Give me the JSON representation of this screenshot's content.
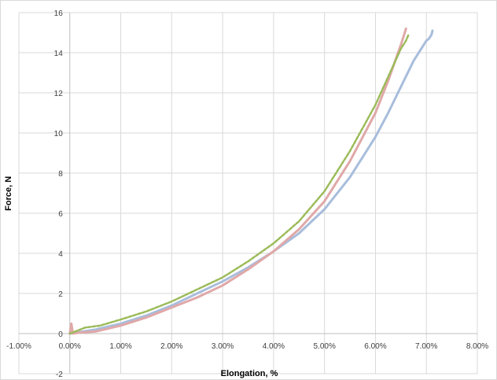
{
  "chart_data": {
    "type": "line",
    "title": "",
    "xlabel": "Elongation, %",
    "ylabel": "Force, N",
    "xlim": [
      -0.01,
      0.08
    ],
    "ylim": [
      -2,
      16
    ],
    "x_ticks": [
      -0.01,
      0.0,
      0.01,
      0.02,
      0.03,
      0.04,
      0.05,
      0.06,
      0.07,
      0.08
    ],
    "x_tick_labels": [
      "-1.00%",
      "0.00%",
      "1.00%",
      "2.00%",
      "3.00%",
      "4.00%",
      "5.00%",
      "6.00%",
      "7.00%",
      "8.00%"
    ],
    "y_ticks": [
      -2,
      0,
      2,
      4,
      6,
      8,
      10,
      12,
      14,
      16
    ],
    "y_tick_labels": [
      "-2",
      "0",
      "2",
      "4",
      "6",
      "8",
      "10",
      "12",
      "14",
      "16"
    ],
    "grid": true,
    "legend": "none",
    "series": [
      {
        "color": "#a8bddc",
        "dashed": false,
        "x": [
          0.0,
          0.005,
          0.01,
          0.015,
          0.02,
          0.025,
          0.03,
          0.035,
          0.04,
          0.045,
          0.05,
          0.055,
          0.06,
          0.0625,
          0.065,
          0.0675,
          0.07,
          0.0705,
          0.071,
          0.0712
        ],
        "y": [
          0.0,
          0.2,
          0.5,
          0.9,
          1.4,
          2.0,
          2.6,
          3.3,
          4.1,
          5.0,
          6.2,
          7.8,
          9.8,
          11.0,
          12.3,
          13.6,
          14.6,
          14.7,
          14.9,
          15.1
        ]
      },
      {
        "color": "#e0a8a8",
        "dashed": false,
        "x": [
          0.0,
          0.0003,
          0.0006,
          0.002,
          0.005,
          0.01,
          0.015,
          0.02,
          0.025,
          0.03,
          0.035,
          0.04,
          0.045,
          0.05,
          0.055,
          0.06,
          0.0625,
          0.065,
          0.0655,
          0.066
        ],
        "y": [
          0.0,
          0.5,
          0.0,
          0.05,
          0.1,
          0.4,
          0.8,
          1.3,
          1.8,
          2.4,
          3.2,
          4.1,
          5.2,
          6.6,
          8.6,
          11.0,
          12.6,
          14.4,
          14.8,
          15.2
        ]
      },
      {
        "color": "#9bbb59",
        "dashed": true,
        "x": [
          0.0,
          0.003,
          0.006,
          0.01,
          0.015,
          0.02,
          0.025,
          0.03,
          0.035,
          0.04,
          0.045,
          0.05,
          0.055,
          0.06,
          0.0625,
          0.065,
          0.066,
          0.0665
        ],
        "y": [
          0.0,
          0.3,
          0.4,
          0.7,
          1.1,
          1.6,
          2.2,
          2.8,
          3.6,
          4.5,
          5.6,
          7.1,
          9.1,
          11.4,
          12.8,
          14.2,
          14.6,
          14.9
        ]
      }
    ]
  }
}
